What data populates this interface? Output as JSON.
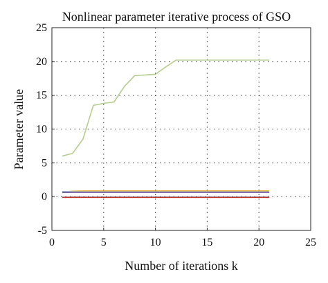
{
  "chart_data": {
    "type": "line",
    "title": "Nonlinear parameter iterative process of GSO",
    "xlabel": "Number of iterations k",
    "ylabel": "Parameter value",
    "xlim": [
      0,
      25
    ],
    "ylim": [
      -5,
      25
    ],
    "xticks": [
      0,
      5,
      10,
      15,
      20,
      25
    ],
    "yticks": [
      -5,
      0,
      5,
      10,
      15,
      20,
      25
    ],
    "xtick_labels": [
      "0",
      "5",
      "10",
      "15",
      "20",
      "25"
    ],
    "ytick_labels": [
      "-5",
      "0",
      "5",
      "10",
      "15",
      "20",
      "25"
    ],
    "grid": true,
    "legend": "none",
    "x": [
      1,
      2,
      3,
      4,
      5,
      6,
      7,
      8,
      9,
      10,
      11,
      12,
      13,
      14,
      15,
      16,
      17,
      18,
      19,
      20,
      21
    ],
    "series": [
      {
        "color": "#b5cc8e",
        "values": [
          6.0,
          6.4,
          8.5,
          13.5,
          13.8,
          14.0,
          16.3,
          17.9,
          18.0,
          18.1,
          19.2,
          20.2,
          20.2,
          20.2,
          20.2,
          20.2,
          20.2,
          20.2,
          20.2,
          20.2,
          20.2
        ]
      },
      {
        "color": "#e6b32e",
        "values": [
          0.65,
          0.8,
          0.85,
          0.85,
          0.85,
          0.85,
          0.85,
          0.85,
          0.85,
          0.85,
          0.85,
          0.85,
          0.85,
          0.85,
          0.85,
          0.85,
          0.85,
          0.85,
          0.85,
          0.85,
          0.85
        ]
      },
      {
        "color": "#8fb4d8",
        "values": [
          0.75,
          0.72,
          0.7,
          0.7,
          0.7,
          0.7,
          0.7,
          0.7,
          0.7,
          0.7,
          0.7,
          0.7,
          0.7,
          0.7,
          0.7,
          0.7,
          0.7,
          0.7,
          0.7,
          0.7,
          0.7
        ]
      },
      {
        "color": "#7a5aa6",
        "values": [
          0.6,
          0.62,
          0.62,
          0.62,
          0.62,
          0.62,
          0.62,
          0.62,
          0.62,
          0.62,
          0.62,
          0.62,
          0.62,
          0.62,
          0.62,
          0.62,
          0.62,
          0.62,
          0.62,
          0.62,
          0.62
        ]
      },
      {
        "color": "#3a5aa8",
        "values": [
          -0.1,
          -0.08,
          -0.08,
          -0.08,
          -0.08,
          -0.08,
          -0.08,
          -0.08,
          -0.08,
          -0.08,
          -0.08,
          -0.08,
          -0.08,
          -0.08,
          -0.08,
          -0.08,
          -0.08,
          -0.08,
          -0.08,
          -0.08,
          -0.08
        ]
      },
      {
        "color": "#c0392b",
        "values": [
          -0.12,
          -0.1,
          -0.12,
          -0.12,
          -0.12,
          -0.12,
          -0.12,
          -0.12,
          -0.12,
          -0.12,
          -0.12,
          -0.12,
          -0.12,
          -0.12,
          -0.12,
          -0.12,
          -0.12,
          -0.12,
          -0.12,
          -0.12,
          -0.12
        ]
      }
    ]
  }
}
